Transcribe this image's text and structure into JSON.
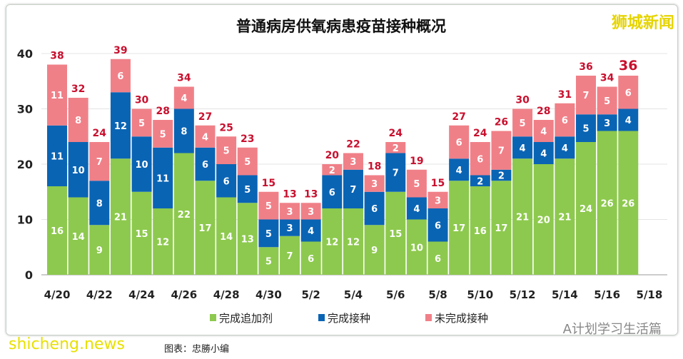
{
  "chart_data": {
    "type": "bar",
    "stacked": true,
    "title": "普通病房供氧病患疫苗接种概况",
    "categories": [
      "4/20",
      "4/21",
      "4/22",
      "4/23",
      "4/24",
      "4/25",
      "4/26",
      "4/27",
      "4/28",
      "4/29",
      "4/30",
      "5/1",
      "5/2",
      "5/3",
      "5/4",
      "5/5",
      "5/6",
      "5/7",
      "5/8",
      "5/9",
      "5/10",
      "5/11",
      "5/12",
      "5/13",
      "5/14",
      "5/15",
      "5/16",
      "5/17"
    ],
    "x_tick_labels": [
      "4/20",
      "4/22",
      "4/24",
      "4/26",
      "4/28",
      "4/30",
      "5/2",
      "5/4",
      "5/6",
      "5/8",
      "5/10",
      "5/12",
      "5/14",
      "5/16",
      "5/18"
    ],
    "series": [
      {
        "name": "完成追加剂",
        "color": "#8dc94e",
        "values": [
          16,
          14,
          9,
          21,
          15,
          12,
          22,
          17,
          14,
          13,
          5,
          7,
          6,
          12,
          12,
          9,
          15,
          10,
          6,
          17,
          16,
          17,
          21,
          20,
          21,
          24,
          26,
          26
        ]
      },
      {
        "name": "完成接种",
        "color": "#0a64b4",
        "values": [
          11,
          10,
          8,
          12,
          10,
          11,
          8,
          6,
          6,
          5,
          5,
          3,
          4,
          6,
          7,
          6,
          7,
          4,
          6,
          4,
          2,
          2,
          4,
          4,
          4,
          5,
          3,
          4
        ]
      },
      {
        "name": "未完成接种",
        "color": "#f08088",
        "values": [
          11,
          8,
          7,
          6,
          5,
          5,
          4,
          4,
          5,
          5,
          5,
          3,
          3,
          2,
          3,
          3,
          2,
          5,
          3,
          6,
          6,
          7,
          5,
          4,
          6,
          7,
          5,
          6
        ]
      }
    ],
    "totals": [
      38,
      32,
      24,
      39,
      30,
      28,
      34,
      27,
      25,
      23,
      15,
      13,
      13,
      20,
      22,
      18,
      24,
      19,
      15,
      27,
      24,
      26,
      30,
      28,
      31,
      36,
      34,
      36
    ],
    "ylim": [
      0,
      40
    ],
    "yticks": [
      0,
      10,
      20,
      30,
      40
    ],
    "grid": true,
    "legend": "bottom"
  },
  "watermarks": {
    "top_right": "狮城新闻",
    "bottom_left": "shicheng.news",
    "bottom_right": "A计划学习生活篇"
  },
  "source": "图表：忠勝小编"
}
